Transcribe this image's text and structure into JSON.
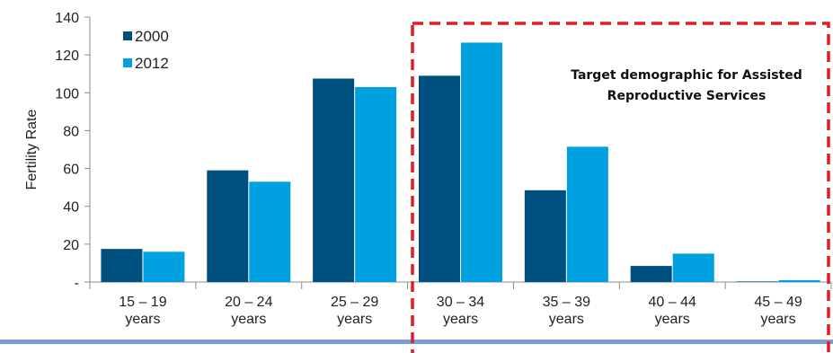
{
  "chart_data": {
    "type": "bar",
    "categories": [
      [
        "15 – 19",
        "years"
      ],
      [
        "20 – 24",
        "years"
      ],
      [
        "25 – 29",
        "years"
      ],
      [
        "30 – 34",
        "years"
      ],
      [
        "35 – 39",
        "years"
      ],
      [
        "40 – 44",
        "years"
      ],
      [
        "45 – 49",
        "years"
      ]
    ],
    "series": [
      {
        "name": "2000",
        "color": "#00507F",
        "values": [
          17.5,
          59,
          107.5,
          109,
          48.5,
          8.5,
          0.3
        ]
      },
      {
        "name": "2012",
        "color": "#00A1E0",
        "values": [
          16,
          53,
          103,
          126.5,
          71.5,
          15,
          1
        ]
      }
    ],
    "ylabel": "Fertility Rate",
    "ylim": [
      0,
      140
    ],
    "yticks": [
      {
        "value": 0,
        "label": "-"
      },
      {
        "value": 20,
        "label": "20"
      },
      {
        "value": 40,
        "label": "40"
      },
      {
        "value": 60,
        "label": "60"
      },
      {
        "value": 80,
        "label": "80"
      },
      {
        "value": 100,
        "label": "100"
      },
      {
        "value": 120,
        "label": "120"
      },
      {
        "value": 140,
        "label": "140"
      }
    ],
    "legend_position": "top-left",
    "grid": false,
    "annotation": {
      "lines": [
        "Target demographic for Assisted",
        "Reproductive Services"
      ],
      "highlight_categories": [
        "30 – 34",
        "35 – 39",
        "40 – 44",
        "45 – 49"
      ],
      "border_color": "#E31B23"
    },
    "bottom_rule_color": "#7A9FD8"
  }
}
